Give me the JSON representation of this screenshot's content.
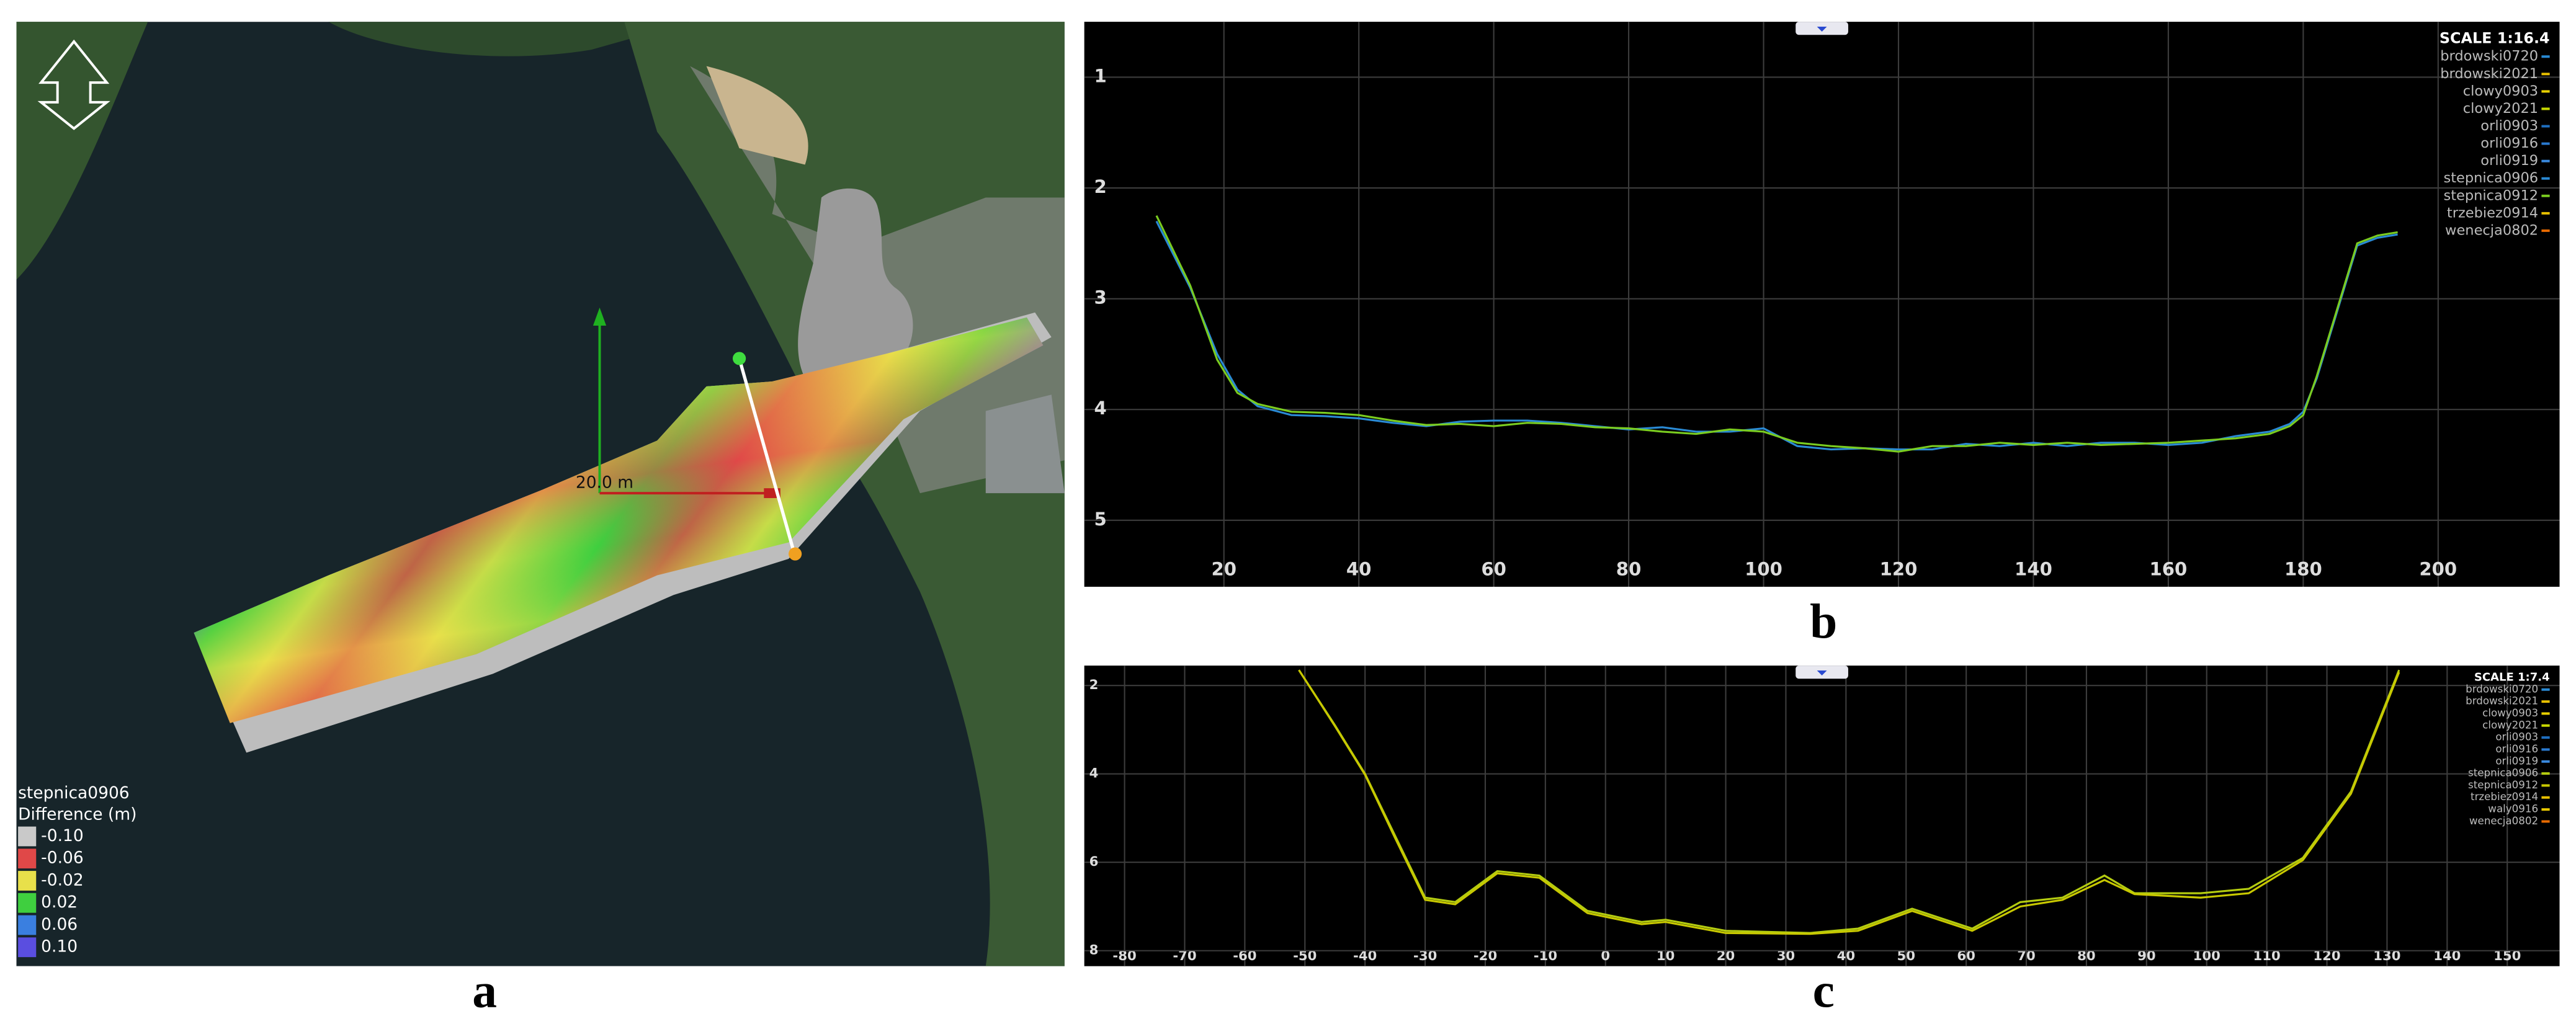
{
  "map": {
    "scale_label": "20.0 m",
    "legend_title": "stepnica0906",
    "legend_subtitle": "Difference (m)",
    "legend": [
      {
        "label": "-0.10",
        "color": "#c9c9c9"
      },
      {
        "label": "-0.06",
        "color": "#e04848"
      },
      {
        "label": "-0.02",
        "color": "#e8e04a"
      },
      {
        "label": "0.02",
        "color": "#3fcf3f"
      },
      {
        "label": "0.06",
        "color": "#3a7fe0"
      },
      {
        "label": "0.10",
        "color": "#5a4ee0"
      }
    ]
  },
  "panel_labels": [
    "a",
    "b",
    "c"
  ],
  "chart_data": [
    {
      "type": "line",
      "title": "SCALE 1:16.4",
      "y_inverted": true,
      "grid": true,
      "xlim": [
        -0.7,
        218
      ],
      "ylim": [
        0.5,
        5.6
      ],
      "xticks": [
        20,
        40,
        60,
        80,
        100,
        120,
        140,
        160,
        180,
        200
      ],
      "yticks": [
        1,
        2,
        3,
        4,
        5
      ],
      "x": [
        10,
        15,
        19,
        22,
        25,
        30,
        35,
        40,
        45,
        50,
        55,
        60,
        65,
        70,
        75,
        80,
        85,
        90,
        95,
        100,
        105,
        110,
        115,
        120,
        125,
        130,
        135,
        140,
        145,
        150,
        155,
        160,
        165,
        170,
        175,
        178,
        180,
        182,
        185,
        188,
        191,
        194
      ],
      "series": [
        {
          "name": "brdowski0720",
          "color": "#2a8ad4"
        },
        {
          "name": "brdowski2021",
          "color": "#e8c000"
        },
        {
          "name": "clowy0903",
          "color": "#e8d000"
        },
        {
          "name": "clowy2021",
          "color": "#c8d800"
        },
        {
          "name": "orli0903",
          "color": "#1f6fc0"
        },
        {
          "name": "orli0916",
          "color": "#2a7ad0"
        },
        {
          "name": "orli0919",
          "color": "#3a8ae0"
        },
        {
          "name": "stepnica0906",
          "color": "#2a8ad4",
          "values": [
            2.3,
            2.9,
            3.5,
            3.82,
            3.97,
            4.05,
            4.06,
            4.08,
            4.12,
            4.15,
            4.11,
            4.1,
            4.1,
            4.12,
            4.15,
            4.18,
            4.16,
            4.2,
            4.2,
            4.17,
            4.33,
            4.36,
            4.35,
            4.36,
            4.36,
            4.31,
            4.33,
            4.3,
            4.33,
            4.3,
            4.3,
            4.32,
            4.3,
            4.24,
            4.2,
            4.13,
            4.02,
            3.72,
            3.12,
            2.52,
            2.45,
            2.42
          ]
        },
        {
          "name": "stepnica0912",
          "color": "#7acc20",
          "values": [
            2.25,
            2.88,
            3.55,
            3.85,
            3.95,
            4.02,
            4.03,
            4.05,
            4.1,
            4.14,
            4.13,
            4.15,
            4.12,
            4.13,
            4.16,
            4.17,
            4.2,
            4.22,
            4.18,
            4.2,
            4.3,
            4.33,
            4.35,
            4.38,
            4.33,
            4.33,
            4.3,
            4.32,
            4.3,
            4.32,
            4.31,
            4.3,
            4.28,
            4.26,
            4.22,
            4.15,
            4.05,
            3.7,
            3.1,
            2.5,
            2.43,
            2.4
          ]
        },
        {
          "name": "trzebiez0914",
          "color": "#e8c000"
        },
        {
          "name": "wenecja0802",
          "color": "#e86a00"
        }
      ]
    },
    {
      "type": "line",
      "title": "SCALE 1:7.4",
      "y_inverted": true,
      "grid": true,
      "xlim": [
        -86.7,
        158.7
      ],
      "ylim": [
        1.55,
        8.35
      ],
      "xticks": [
        -80,
        -70,
        -60,
        -50,
        -40,
        -30,
        -20,
        -10,
        0,
        10,
        20,
        30,
        40,
        50,
        60,
        70,
        80,
        90,
        100,
        110,
        120,
        130,
        140,
        150
      ],
      "yticks": [
        2,
        4,
        6,
        8
      ],
      "x": [
        -51,
        -45,
        -40,
        -35,
        -30,
        -25,
        -18,
        -11,
        -3,
        6,
        10,
        20,
        34,
        42,
        51,
        61,
        69,
        76,
        83,
        88,
        99,
        107,
        116,
        124,
        132
      ],
      "series": [
        {
          "name": "brdowski0720",
          "color": "#2a8ad4"
        },
        {
          "name": "brdowski2021",
          "color": "#e8c000"
        },
        {
          "name": "clowy0903",
          "color": "#e8d000"
        },
        {
          "name": "clowy2021",
          "color": "#c8d800"
        },
        {
          "name": "orli0903",
          "color": "#1f6fc0"
        },
        {
          "name": "orli0916",
          "color": "#2a7ad0"
        },
        {
          "name": "orli0919",
          "color": "#3a8ae0"
        },
        {
          "name": "stepnica0906",
          "color": "#b4cc10",
          "values": [
            1.65,
            2.9,
            4.0,
            5.4,
            6.8,
            6.9,
            6.2,
            6.3,
            7.1,
            7.35,
            7.3,
            7.55,
            7.6,
            7.5,
            7.05,
            7.5,
            6.9,
            6.8,
            6.3,
            6.7,
            6.7,
            6.6,
            5.9,
            4.4,
            1.65
          ]
        },
        {
          "name": "stepnica0912",
          "color": "#c8c800",
          "values": [
            1.65,
            2.92,
            4.02,
            5.45,
            6.85,
            6.95,
            6.25,
            6.35,
            7.15,
            7.4,
            7.35,
            7.6,
            7.62,
            7.55,
            7.1,
            7.55,
            7.0,
            6.85,
            6.4,
            6.72,
            6.8,
            6.7,
            5.95,
            4.45,
            1.7
          ]
        },
        {
          "name": "trzebiez0914",
          "color": "#e8c000"
        },
        {
          "name": "waly0916",
          "color": "#e8c800"
        },
        {
          "name": "wenecja0802",
          "color": "#e86a00"
        }
      ]
    }
  ]
}
